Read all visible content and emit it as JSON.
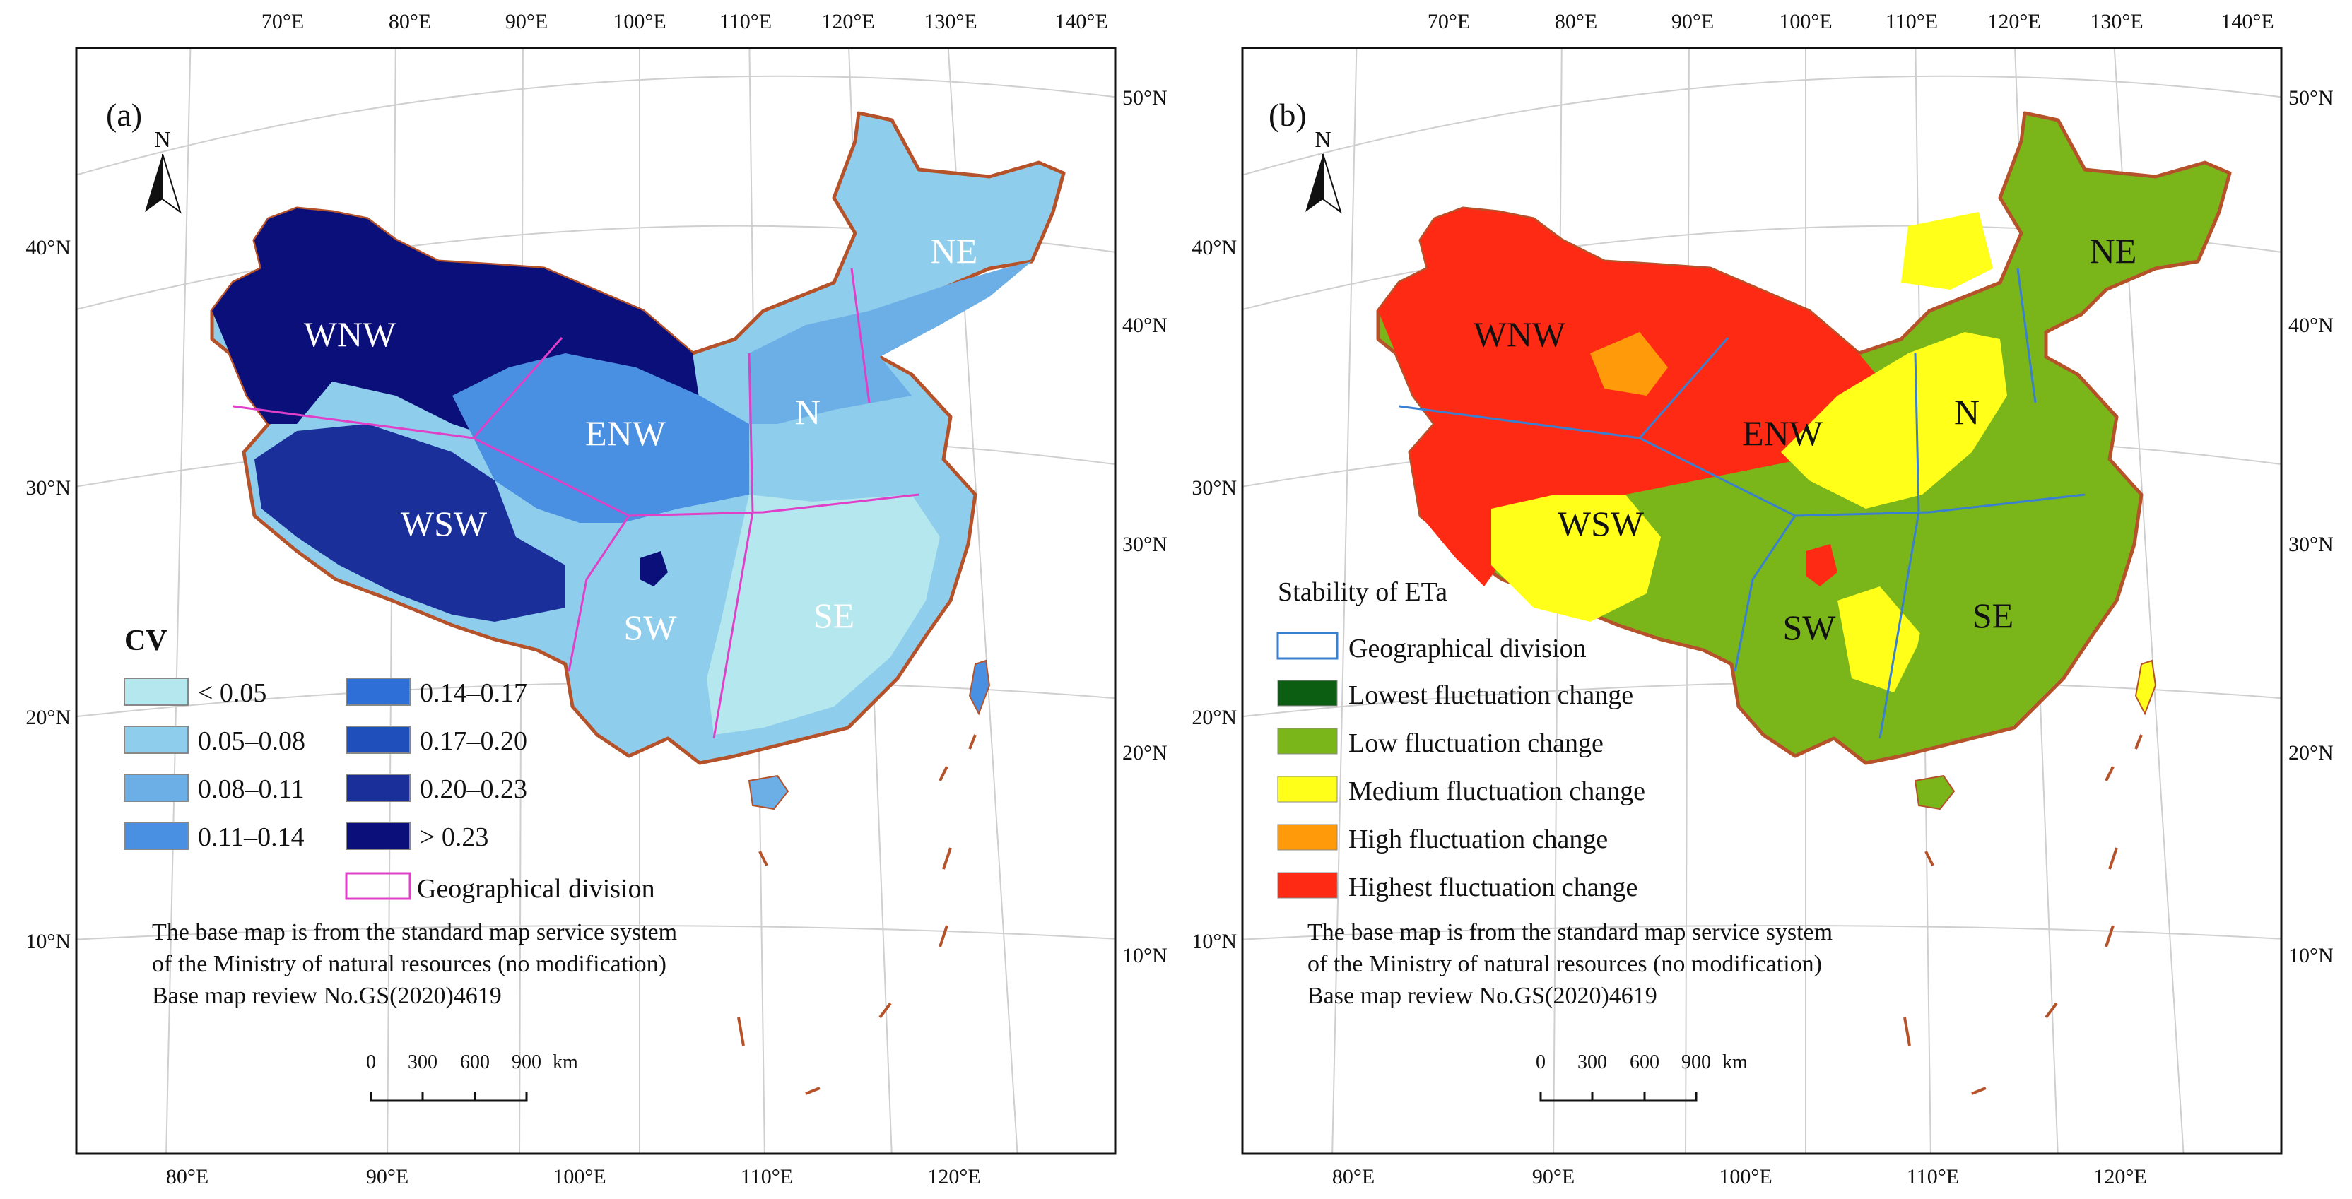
{
  "panels": [
    {
      "id": "a",
      "label": "(a)",
      "north": "N",
      "top_lon_labels": [
        "70°E",
        "80°E",
        "90°E",
        "100°E",
        "110°E",
        "120°E",
        "130°E",
        "140°E"
      ],
      "bottom_lon_labels": [
        "80°E",
        "90°E",
        "100°E",
        "110°E",
        "120°E"
      ],
      "left_lat_labels": [
        "40°N",
        "30°N",
        "20°N",
        "10°N"
      ],
      "right_lat_labels": [
        "50°N",
        "40°N",
        "30°N",
        "20°N",
        "10°N"
      ],
      "regions": [
        "WNW",
        "ENW",
        "N",
        "NE",
        "WSW",
        "SW",
        "SE"
      ],
      "region_text_color": "#ffffff",
      "division_color": "#e040c8",
      "border_color": "#b5522a",
      "palette": [
        "#b5e8ee",
        "#8fcdec",
        "#6caee6",
        "#4a90e2",
        "#2d6fd6",
        "#1f4fba",
        "#1a2f9a",
        "#0b0f7a"
      ],
      "legend": {
        "title": "CV",
        "items": [
          {
            "label": "< 0.05",
            "color": "#b5e8ee"
          },
          {
            "label": "0.05–0.08",
            "color": "#8fcdec"
          },
          {
            "label": "0.08–0.11",
            "color": "#6caee6"
          },
          {
            "label": "0.11–0.14",
            "color": "#4a90e2"
          },
          {
            "label": "0.14–0.17",
            "color": "#2d6fd6"
          },
          {
            "label": "0.17–0.20",
            "color": "#1f4fba"
          },
          {
            "label": "0.20–0.23",
            "color": "#1a2f9a"
          },
          {
            "label": "> 0.23",
            "color": "#0b0f7a"
          }
        ],
        "division_label": "Geographical division"
      },
      "note": [
        "The base map is from the standard map service system",
        "of the Ministry of natural resources (no modification)",
        "Base map review No.GS(2020)4619"
      ],
      "scale": {
        "ticks": [
          "0",
          "300",
          "600",
          "900"
        ],
        "unit": "km"
      }
    },
    {
      "id": "b",
      "label": "(b)",
      "north": "N",
      "top_lon_labels": [
        "70°E",
        "80°E",
        "90°E",
        "100°E",
        "110°E",
        "120°E",
        "130°E",
        "140°E"
      ],
      "bottom_lon_labels": [
        "80°E",
        "90°E",
        "100°E",
        "110°E",
        "120°E"
      ],
      "left_lat_labels": [
        "40°N",
        "30°N",
        "20°N",
        "10°N"
      ],
      "right_lat_labels": [
        "50°N",
        "40°N",
        "30°N",
        "20°N",
        "10°N"
      ],
      "regions": [
        "WNW",
        "ENW",
        "N",
        "NE",
        "WSW",
        "SW",
        "SE"
      ],
      "region_text_color": "#111111",
      "division_color": "#3a7fd0",
      "border_color": "#b5522a",
      "legend": {
        "title": "Stability of ETa",
        "division_label": "Geographical division",
        "items": [
          {
            "label": "Lowest fluctuation change",
            "color": "#0b5e12"
          },
          {
            "label": "Low fluctuation change",
            "color": "#7ab51a"
          },
          {
            "label": "Medium fluctuation change",
            "color": "#ffff1a"
          },
          {
            "label": "High fluctuation change",
            "color": "#ff9a0a"
          },
          {
            "label": "Highest fluctuation change",
            "color": "#ff2a14"
          }
        ]
      },
      "note": [
        "The base map is from the standard map service system",
        "of the Ministry of natural resources (no modification)",
        "Base map review No.GS(2020)4619"
      ],
      "scale": {
        "ticks": [
          "0",
          "300",
          "600",
          "900"
        ],
        "unit": "km"
      }
    }
  ]
}
